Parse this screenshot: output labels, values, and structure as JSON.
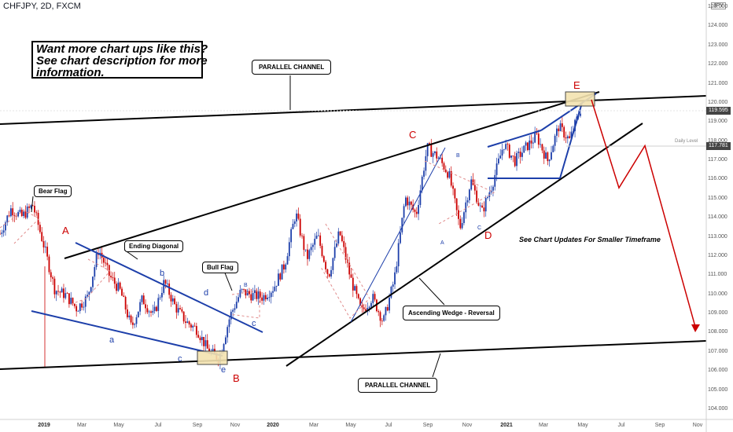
{
  "symbol_title": "CHFJPY, 2D, FXCM",
  "currency_label": "JPY",
  "promo": {
    "line1": "Want more chart ups like this?",
    "line2": "See chart description for more",
    "line3": "information."
  },
  "callouts": {
    "parallel_top": "PARALLEL CHANNEL",
    "parallel_bottom": "PARALLEL CHANNEL",
    "bear_flag": "Bear Flag",
    "ending_diagonal": "Ending Diagonal",
    "bull_flag": "Bull Flag",
    "ascending_wedge": "Ascending Wedge - Reversal"
  },
  "note_text": "See Chart Updates For Smaller Timeframe",
  "daily_level_label": "Daily Level",
  "wave_labels_red": [
    "A",
    "B",
    "C",
    "D",
    "E"
  ],
  "wave_labels_blue": [
    "a",
    "b",
    "c",
    "d",
    "e",
    "c"
  ],
  "wave_labels_small": [
    "B",
    "B",
    "A",
    "C"
  ],
  "price_tags": {
    "last": "119.595",
    "daily": "117.781"
  },
  "colors": {
    "bull": "#1d3faa",
    "bear": "#cc0000",
    "trend": "#000000",
    "projection": "#cc0000",
    "zone": "#f3e3b0"
  },
  "chart_data": {
    "type": "candlestick",
    "y_ticks": [
      "125.000",
      "124.000",
      "123.000",
      "122.000",
      "121.000",
      "120.000",
      "119.000",
      "118.000",
      "117.000",
      "116.000",
      "115.000",
      "114.000",
      "113.000",
      "112.000",
      "111.000",
      "110.000",
      "109.000",
      "108.000",
      "107.000",
      "106.000",
      "105.000",
      "104.000"
    ],
    "x_ticks": [
      {
        "label": "2019",
        "year": true
      },
      {
        "label": "Mar",
        "year": false
      },
      {
        "label": "May",
        "year": false
      },
      {
        "label": "Jul",
        "year": false
      },
      {
        "label": "Sep",
        "year": false
      },
      {
        "label": "Nov",
        "year": false
      },
      {
        "label": "2020",
        "year": true
      },
      {
        "label": "Mar",
        "year": false
      },
      {
        "label": "May",
        "year": false
      },
      {
        "label": "Jul",
        "year": false
      },
      {
        "label": "Sep",
        "year": false
      },
      {
        "label": "Nov",
        "year": false
      },
      {
        "label": "2021",
        "year": true
      },
      {
        "label": "Mar",
        "year": false
      },
      {
        "label": "May",
        "year": false
      },
      {
        "label": "Jul",
        "year": false
      },
      {
        "label": "Sep",
        "year": false
      },
      {
        "label": "Nov",
        "year": false
      }
    ],
    "close_path": [
      113.2,
      114.5,
      114.1,
      114.7,
      112.6,
      110.3,
      110.0,
      109.3,
      109.9,
      112.4,
      111.0,
      110.2,
      108.3,
      109.8,
      108.9,
      110.7,
      109.4,
      108.6,
      108.2,
      107.1,
      106.7,
      108.9,
      110.2,
      110.0,
      109.9,
      110.4,
      111.6,
      114.3,
      111.9,
      113.1,
      111.0,
      113.3,
      110.9,
      109.1,
      109.9,
      108.6,
      110.8,
      115.1,
      114.2,
      117.7,
      117.2,
      116.3,
      113.5,
      116.0,
      114.3,
      115.9,
      117.9,
      117.0,
      117.7,
      118.3,
      117.0,
      118.8,
      118.1,
      119.7
    ],
    "start_label": "Sep 2018",
    "end_label": "May 2021",
    "projection_path": [
      120.2,
      115.6,
      117.8,
      108.2
    ],
    "ylim": [
      103.8,
      125.5
    ]
  }
}
